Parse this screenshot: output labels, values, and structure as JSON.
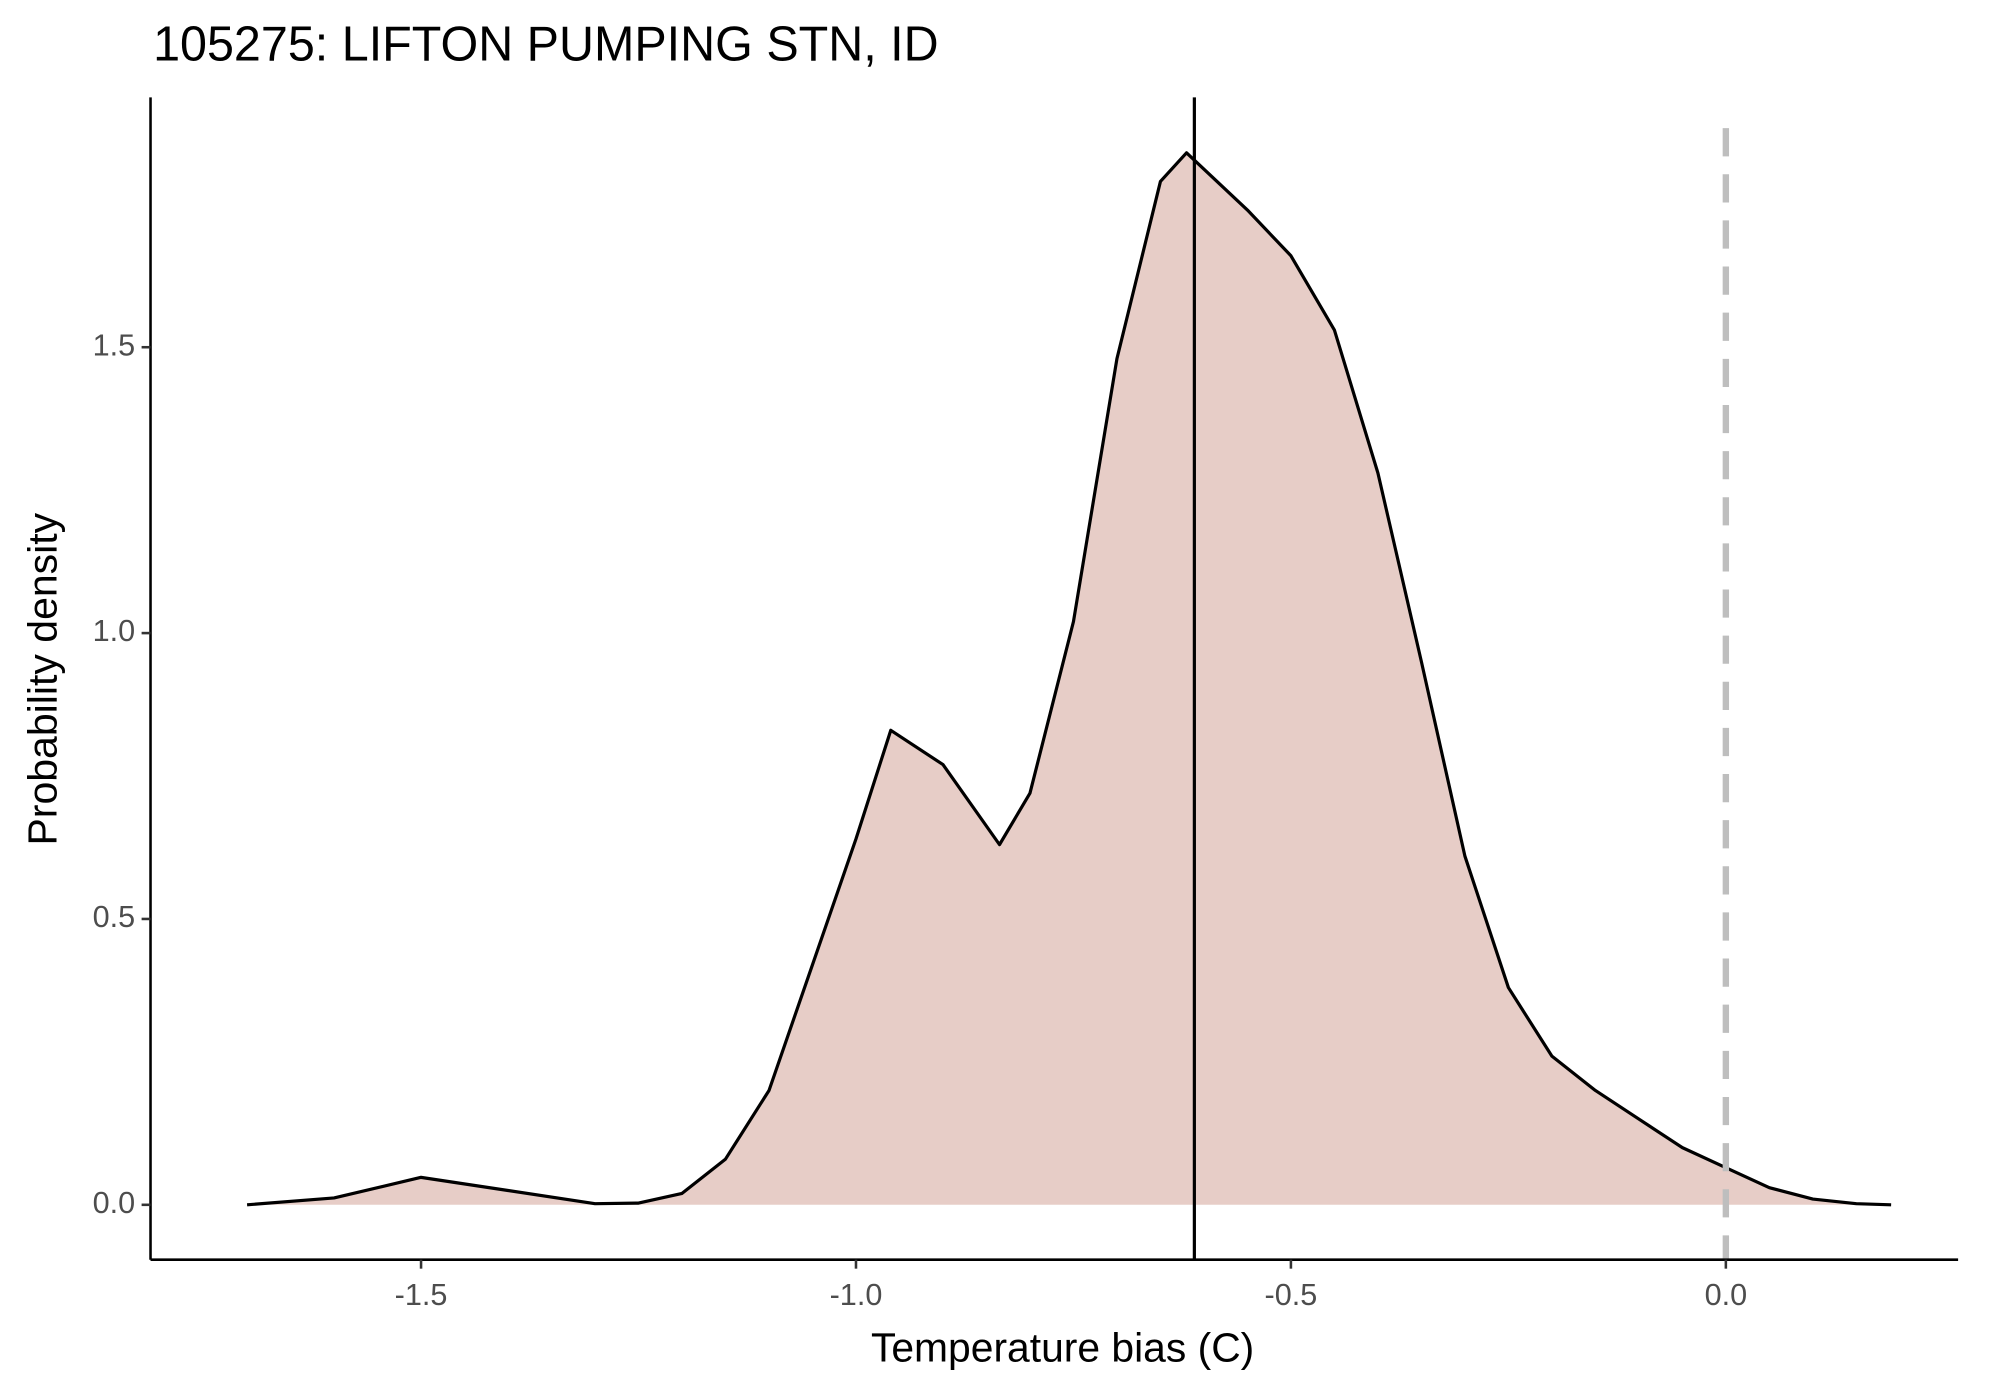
{
  "chart_data": {
    "type": "density",
    "title": "105275: LIFTON PUMPING STN, ID",
    "xlabel": "Temperature bias (C)",
    "ylabel": "Probability density",
    "x": [
      -1.7,
      -1.6,
      -1.5,
      -1.4,
      -1.3,
      -1.25,
      -1.2,
      -1.15,
      -1.1,
      -1.05,
      -1.0,
      -0.96,
      -0.9,
      -0.835,
      -0.8,
      -0.75,
      -0.7,
      -0.65,
      -0.62,
      -0.55,
      -0.5,
      -0.45,
      -0.4,
      -0.35,
      -0.3,
      -0.25,
      -0.2,
      -0.15,
      -0.1,
      -0.05,
      0.0,
      0.05,
      0.1,
      0.15,
      0.19
    ],
    "values": [
      0,
      0.012,
      0.048,
      0.025,
      0.002,
      0.003,
      0.02,
      0.08,
      0.2,
      0.42,
      0.64,
      0.83,
      0.77,
      0.63,
      0.72,
      1.02,
      1.48,
      1.79,
      1.84,
      1.74,
      1.66,
      1.53,
      1.28,
      0.95,
      0.61,
      0.38,
      0.26,
      0.2,
      0.15,
      0.1,
      0.065,
      0.03,
      0.01,
      0.002,
      0
    ],
    "fill": "#e7cdc7",
    "color": "#000000",
    "vlines": [
      {
        "x": -0.611,
        "color": "#000000",
        "dash": false
      },
      {
        "x": 0,
        "color": "#bebebe",
        "dash": true
      }
    ],
    "xlim": [
      -1.811,
      0.267
    ],
    "ylim": [
      -0.096,
      1.937
    ],
    "xticks": [
      -1.5,
      {
        "value": -1.0,
        "label": "-1.0"
      },
      -0.5,
      {
        "value": 0,
        "label": "0.0"
      }
    ],
    "yticks": [
      {
        "value": 0,
        "label": "0.0"
      },
      0.5,
      {
        "value": 1.0,
        "label": "1.0"
      },
      1.5
    ]
  }
}
